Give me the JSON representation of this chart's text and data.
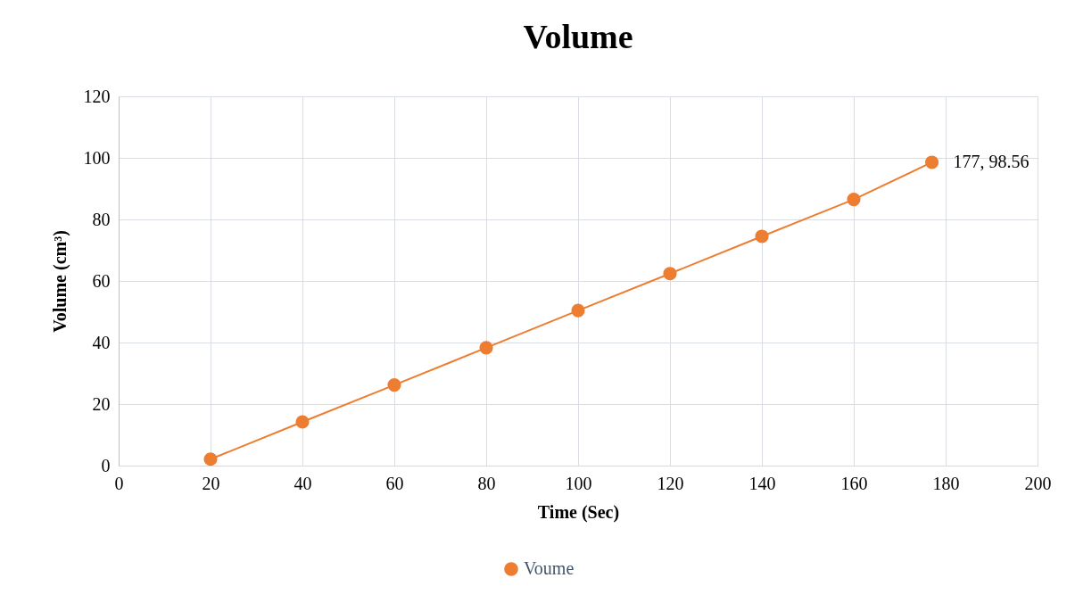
{
  "chart_data": {
    "type": "line",
    "title": "Volume",
    "xlabel": "Time (Sec)",
    "ylabel": "Volume (cm³)",
    "x": [
      20,
      40,
      60,
      80,
      100,
      120,
      140,
      160,
      177
    ],
    "series": [
      {
        "name": "Voume",
        "color": "#ed7d31",
        "values": [
          2.1,
          14.2,
          26.2,
          38.3,
          50.4,
          62.4,
          74.5,
          86.5,
          98.56
        ],
        "value_labels": [
          null,
          null,
          null,
          null,
          null,
          null,
          null,
          null,
          "177, 98.56"
        ]
      }
    ],
    "xlim": [
      0,
      200
    ],
    "xticks": [
      0,
      20,
      40,
      60,
      80,
      100,
      120,
      140,
      160,
      180,
      200
    ],
    "ylim": [
      0,
      120
    ],
    "yticks": [
      0,
      20,
      40,
      60,
      80,
      100,
      120
    ],
    "grid": true,
    "legend": "bottom",
    "marker": "circle",
    "line_style": "solid"
  }
}
